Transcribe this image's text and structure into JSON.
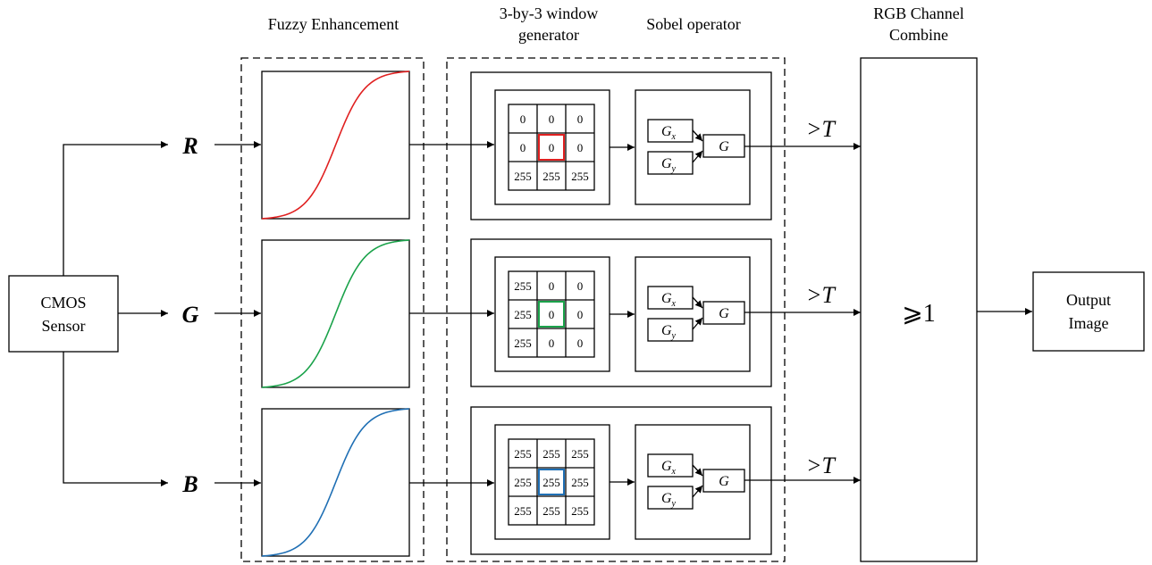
{
  "labels": {
    "fuzzy_enhancement": "Fuzzy Enhancement",
    "window_generator_line1": "3-by-3 window",
    "window_generator_line2": "generator",
    "sobel_operator": "Sobel operator",
    "rgb_combine_line1": "RGB Channel",
    "rgb_combine_line2": "Combine",
    "sensor_line1": "CMOS",
    "sensor_line2": "Sensor",
    "output_line1": "Output",
    "output_line2": "Image",
    "combine_value": "⩾1"
  },
  "channels": [
    {
      "name": "R",
      "color": "#e02020",
      "threshold": ">T",
      "gx": "G",
      "gx_sub": "x",
      "gy": "G",
      "gy_sub": "y",
      "g": "G",
      "window": [
        "0",
        "0",
        "0",
        "0",
        "0",
        "0",
        "255",
        "255",
        "255"
      ]
    },
    {
      "name": "G",
      "color": "#1aa24a",
      "threshold": ">T",
      "gx": "G",
      "gx_sub": "x",
      "gy": "G",
      "gy_sub": "y",
      "g": "G",
      "window": [
        "255",
        "0",
        "0",
        "255",
        "0",
        "0",
        "255",
        "0",
        "0"
      ]
    },
    {
      "name": "B",
      "color": "#1f6fb4",
      "threshold": ">T",
      "gx": "G",
      "gx_sub": "x",
      "gy": "G",
      "gy_sub": "y",
      "g": "G",
      "window": [
        "255",
        "255",
        "255",
        "255",
        "255",
        "255",
        "255",
        "255",
        "255"
      ]
    }
  ]
}
